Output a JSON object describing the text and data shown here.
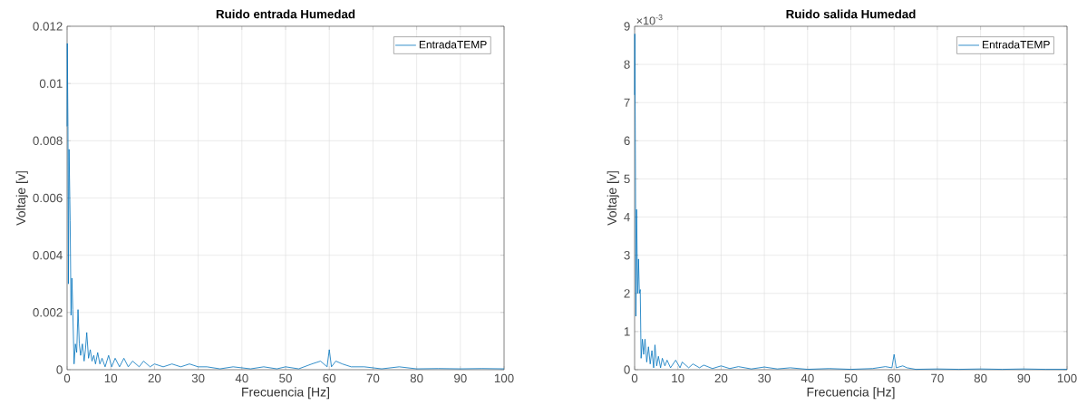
{
  "chart_data": [
    {
      "type": "line",
      "title": "Ruido entrada Humedad",
      "xlabel": "Frecuencia [Hz]",
      "ylabel": "Voltaje [v]",
      "xlim": [
        0,
        100
      ],
      "ylim": [
        0,
        0.012
      ],
      "xticks": [
        0,
        10,
        20,
        30,
        40,
        50,
        60,
        70,
        80,
        90,
        100
      ],
      "yticks": [
        0,
        0.002,
        0.004,
        0.006,
        0.008,
        0.01,
        0.012
      ],
      "grid": true,
      "legend": "top right",
      "x": [
        0,
        0.05,
        0.2,
        0.3,
        0.45,
        0.7,
        0.9,
        1.1,
        1.3,
        1.6,
        1.9,
        2.2,
        2.5,
        2.8,
        3.1,
        3.5,
        3.9,
        4.2,
        4.5,
        4.9,
        5.3,
        5.7,
        6.1,
        6.5,
        7,
        7.5,
        8,
        8.7,
        9.5,
        10.2,
        11,
        12,
        13,
        14,
        15,
        16.5,
        17.5,
        19,
        20,
        22,
        24,
        26,
        28,
        30,
        32,
        35,
        38,
        42,
        45,
        48,
        50,
        53,
        56,
        58,
        59.5,
        60,
        60.5,
        61.5,
        63,
        65,
        68,
        72,
        76,
        80,
        85,
        90,
        95,
        100
      ],
      "series": [
        {
          "name": "EntradaTEMP",
          "color": "#0072bd",
          "values": [
            0.0085,
            0.0114,
            0.0085,
            0.003,
            0.0077,
            0.0052,
            0.0019,
            0.0032,
            0.0021,
            0.0002,
            0.0009,
            0.0006,
            0.0021,
            0.0009,
            0.0005,
            0.0009,
            0.0003,
            0.0007,
            0.0013,
            0.0004,
            0.0007,
            0.0003,
            0.0005,
            0.0002,
            0.0006,
            0.0002,
            0.0004,
            0.0001,
            0.0005,
            0.0001,
            0.0004,
            0.0001,
            0.0004,
            0.0001,
            0.0003,
            0.0001,
            0.0003,
            0.0001,
            0.0002,
            0.0001,
            0.0002,
            0.0001,
            0.0002,
            0.0001,
            0.0001,
            3e-05,
            0.0001,
            3e-05,
            0.0001,
            3e-05,
            0.0001,
            3e-05,
            0.0002,
            0.0003,
            0.0001,
            0.0007,
            0.0001,
            0.0003,
            0.0002,
            0.0001,
            0.0001,
            3e-05,
            0.0001,
            3e-05,
            4e-05,
            3e-05,
            4e-05,
            3e-05
          ]
        }
      ]
    },
    {
      "type": "line",
      "title": "Ruido salida Humedad",
      "xlabel": "Frecuencia [Hz]",
      "ylabel": "Voltaje [v]",
      "annotations": [
        "×10$^{-3}$"
      ],
      "xlim": [
        0,
        100
      ],
      "ylim": [
        0,
        9
      ],
      "xticks": [
        0,
        10,
        20,
        30,
        40,
        50,
        60,
        70,
        80,
        90,
        100
      ],
      "yticks": [
        0,
        1,
        2,
        3,
        4,
        5,
        6,
        7,
        8,
        9
      ],
      "grid": true,
      "legend": "top right",
      "x": [
        0,
        0.05,
        0.2,
        0.3,
        0.45,
        0.7,
        0.9,
        1.1,
        1.3,
        1.5,
        1.8,
        2.1,
        2.4,
        2.8,
        3.2,
        3.6,
        4,
        4.4,
        4.7,
        5.1,
        5.5,
        6,
        6.4,
        7,
        7.5,
        8.3,
        9.5,
        10.5,
        11,
        12.5,
        13.5,
        15,
        16,
        18,
        20,
        22,
        24,
        27,
        30,
        33,
        36,
        40,
        45,
        50,
        55,
        58,
        59.5,
        60,
        60.5,
        62,
        63,
        65,
        70,
        75,
        80,
        85,
        90,
        95,
        100
      ],
      "series": [
        {
          "name": "EntradaTEMP",
          "color": "#0072bd",
          "values": [
            7.2,
            8.8,
            5,
            1.4,
            4.2,
            2,
            2.9,
            2,
            2.1,
            0.3,
            0.8,
            0.4,
            0.8,
            0.2,
            0.6,
            0.15,
            0.5,
            0.05,
            0.65,
            0.1,
            0.35,
            0.05,
            0.3,
            0.1,
            0.25,
            0.05,
            0.25,
            0.05,
            0.2,
            0.05,
            0.15,
            0.05,
            0.12,
            0.03,
            0.1,
            0.03,
            0.08,
            0.02,
            0.07,
            0.02,
            0.05,
            0.01,
            0.03,
            0.01,
            0.03,
            0.08,
            0.05,
            0.4,
            0.05,
            0.1,
            0.05,
            0.01,
            0.02,
            0.01,
            0.02,
            0.01,
            0.02,
            0.01,
            0.01
          ]
        }
      ]
    }
  ]
}
